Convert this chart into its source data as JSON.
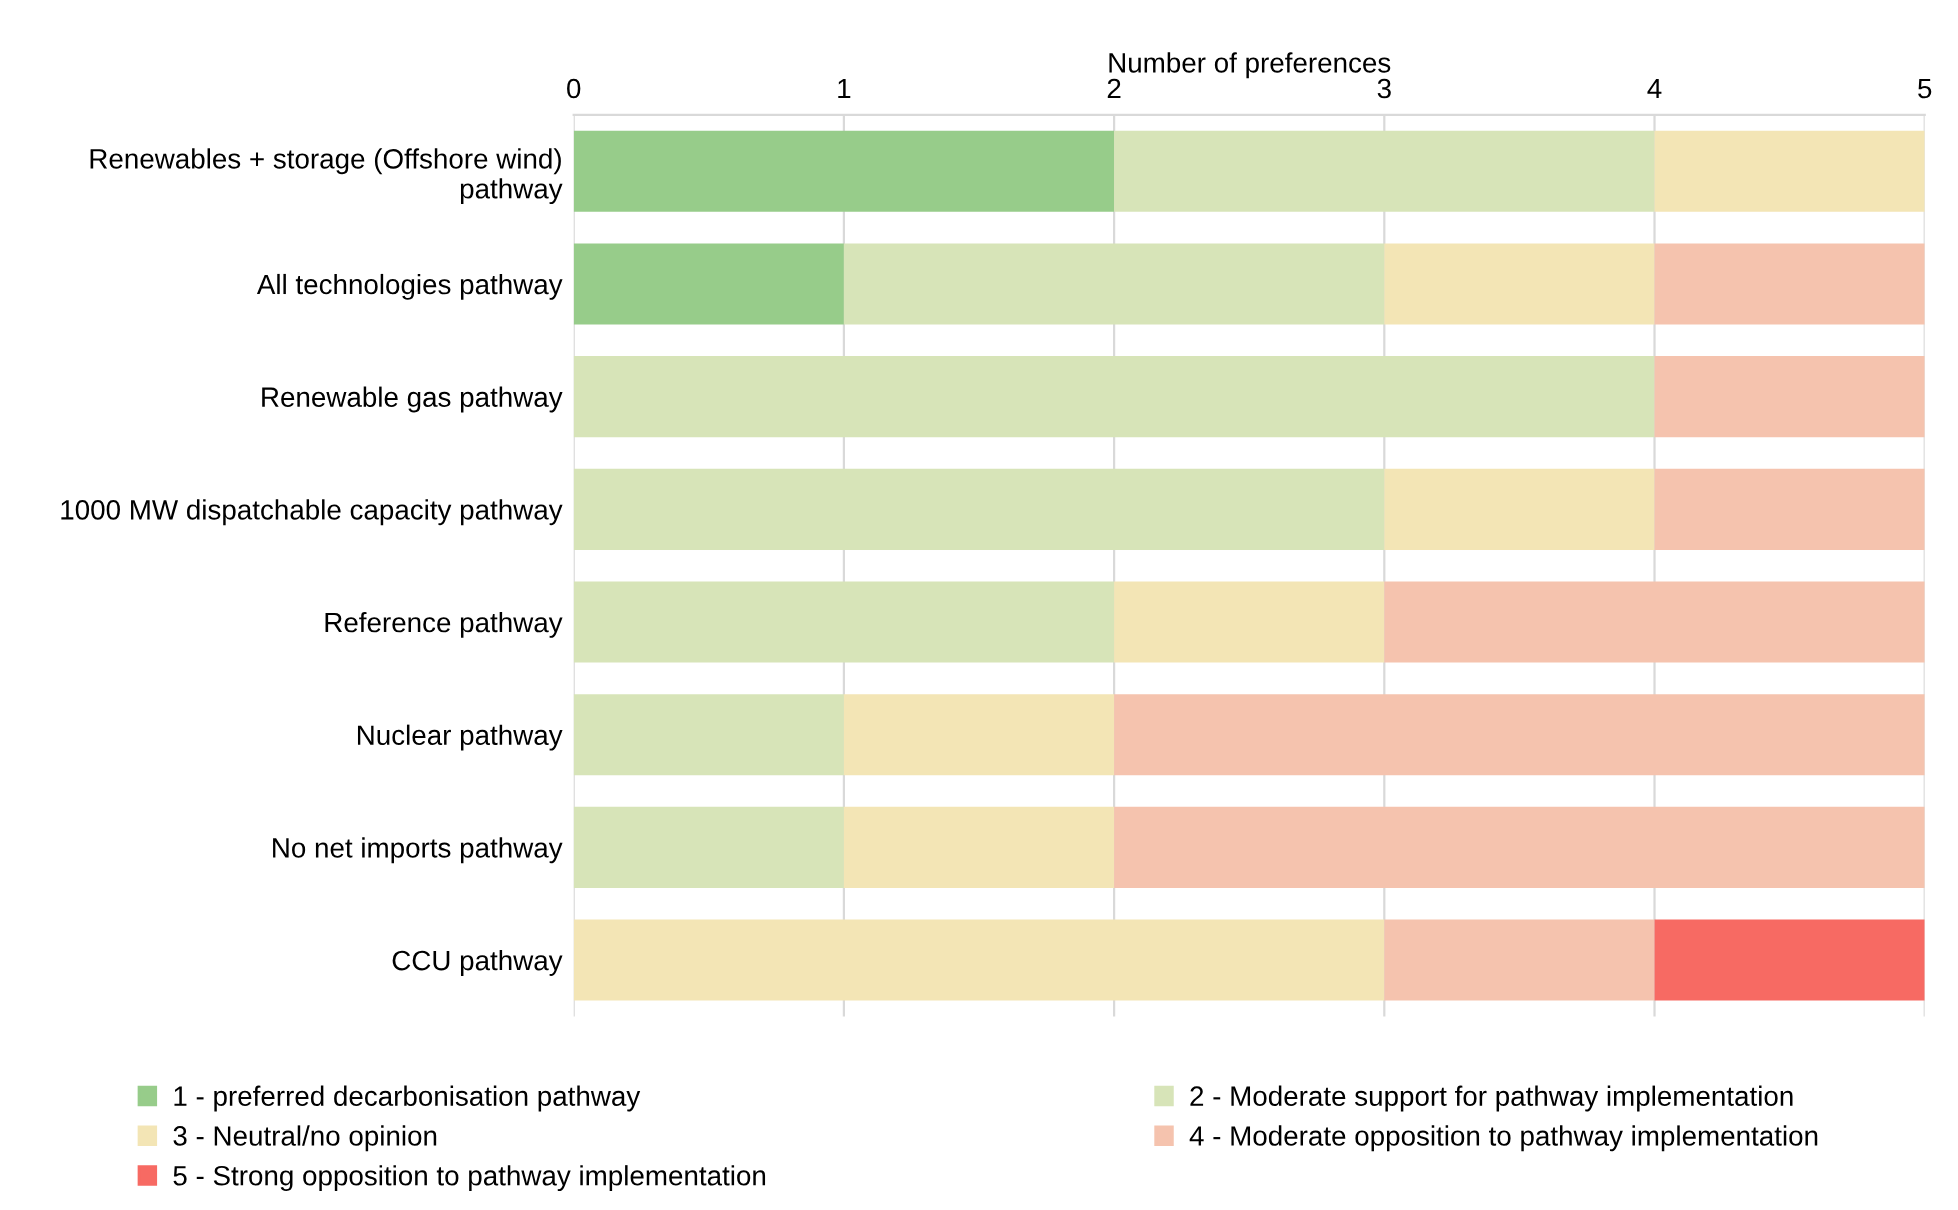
{
  "chart_data": {
    "type": "bar",
    "orientation": "horizontal",
    "stacked": true,
    "xlabel": "Number of preferences",
    "categories": [
      "Renewables + storage (Offshore wind)\npathway",
      "All technologies pathway",
      "Renewable gas pathway",
      "1000 MW dispatchable capacity pathway",
      "Reference pathway",
      "Nuclear pathway",
      "No net imports pathway",
      "CCU pathway"
    ],
    "series": [
      {
        "name": "1 - preferred decarbonisation pathway",
        "color": "#97cc8a",
        "values": [
          2,
          1,
          0,
          0,
          0,
          0,
          0,
          0
        ]
      },
      {
        "name": "2 - Moderate support for pathway implementation",
        "color": "#d7e4b8",
        "values": [
          2,
          2,
          4,
          3,
          2,
          1,
          1,
          0
        ]
      },
      {
        "name": "3 - Neutral/no opinion",
        "color": "#f3e5b5",
        "values": [
          1,
          1,
          0,
          1,
          1,
          1,
          1,
          3
        ]
      },
      {
        "name": "4 - Moderate opposition to pathway implementation",
        "color": "#f5c3ae",
        "values": [
          0,
          1,
          1,
          1,
          2,
          3,
          3,
          1
        ]
      },
      {
        "name": "5 - Strong opposition to pathway implementation",
        "color": "#f76a63",
        "values": [
          0,
          0,
          0,
          0,
          0,
          0,
          0,
          1
        ]
      }
    ],
    "xlim": [
      0,
      5
    ],
    "xticks": [
      0,
      1,
      2,
      3,
      4,
      5
    ],
    "grid": "x",
    "legend": "bottom"
  }
}
